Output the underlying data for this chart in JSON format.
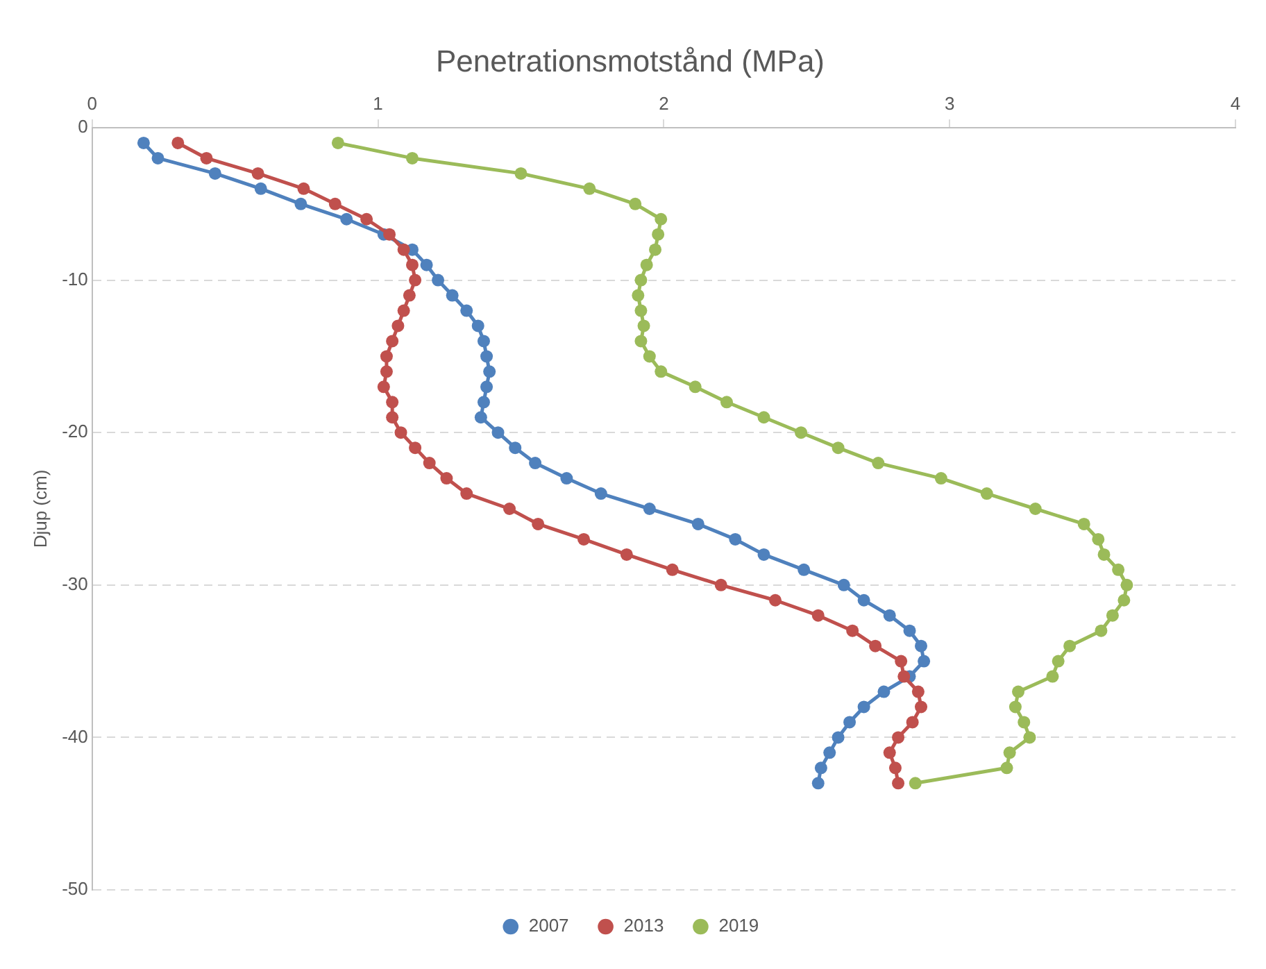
{
  "chart_data": {
    "type": "line",
    "title": "Penetrationsmotstånd (MPa)",
    "ylabel": "Djup (cm)",
    "xlim": [
      0,
      4
    ],
    "xticks": [
      0,
      1,
      2,
      3,
      4
    ],
    "ylim": [
      -50,
      0
    ],
    "yticks": [
      -50,
      -40,
      -30,
      -20,
      -10,
      0
    ],
    "grid": "y",
    "legend": "bottom",
    "marker": "circle",
    "line_style": "solid",
    "series": [
      {
        "name": "2007",
        "color": "#4f81bd",
        "x": [
          0.18,
          0.23,
          0.43,
          0.59,
          0.73,
          0.89,
          1.02,
          1.12,
          1.17,
          1.21,
          1.26,
          1.31,
          1.35,
          1.37,
          1.38,
          1.39,
          1.38,
          1.37,
          1.36,
          1.42,
          1.48,
          1.55,
          1.66,
          1.78,
          1.95,
          2.12,
          2.25,
          2.35,
          2.49,
          2.63,
          2.7,
          2.79,
          2.86,
          2.9,
          2.91,
          2.86,
          2.77,
          2.7,
          2.65,
          2.61,
          2.58,
          2.55,
          2.54
        ],
        "values": [
          -1,
          -2,
          -3,
          -4,
          -5,
          -6,
          -7,
          -8,
          -9,
          -10,
          -11,
          -12,
          -13,
          -14,
          -15,
          -16,
          -17,
          -18,
          -19,
          -20,
          -21,
          -22,
          -23,
          -24,
          -25,
          -26,
          -27,
          -28,
          -29,
          -30,
          -31,
          -32,
          -33,
          -34,
          -35,
          -36,
          -37,
          -38,
          -39,
          -40,
          -41,
          -42,
          -43
        ]
      },
      {
        "name": "2013",
        "color": "#c0504d",
        "x": [
          0.3,
          0.4,
          0.58,
          0.74,
          0.85,
          0.96,
          1.04,
          1.09,
          1.12,
          1.13,
          1.11,
          1.09,
          1.07,
          1.05,
          1.03,
          1.03,
          1.02,
          1.05,
          1.05,
          1.08,
          1.13,
          1.18,
          1.24,
          1.31,
          1.46,
          1.56,
          1.72,
          1.87,
          2.03,
          2.2,
          2.39,
          2.54,
          2.66,
          2.74,
          2.83,
          2.84,
          2.89,
          2.9,
          2.87,
          2.82,
          2.79,
          2.81,
          2.82
        ],
        "values": [
          -1,
          -2,
          -3,
          -4,
          -5,
          -6,
          -7,
          -8,
          -9,
          -10,
          -11,
          -12,
          -13,
          -14,
          -15,
          -16,
          -17,
          -18,
          -19,
          -20,
          -21,
          -22,
          -23,
          -24,
          -25,
          -26,
          -27,
          -28,
          -29,
          -30,
          -31,
          -32,
          -33,
          -34,
          -35,
          -36,
          -37,
          -38,
          -39,
          -40,
          -41,
          -42,
          -43
        ]
      },
      {
        "name": "2019",
        "color": "#9bbb59",
        "x": [
          0.86,
          1.12,
          1.5,
          1.74,
          1.9,
          1.99,
          1.98,
          1.97,
          1.94,
          1.92,
          1.91,
          1.92,
          1.93,
          1.92,
          1.95,
          1.99,
          2.11,
          2.22,
          2.35,
          2.48,
          2.61,
          2.75,
          2.97,
          3.13,
          3.3,
          3.47,
          3.52,
          3.54,
          3.59,
          3.62,
          3.61,
          3.57,
          3.53,
          3.42,
          3.38,
          3.36,
          3.24,
          3.23,
          3.26,
          3.28,
          3.21,
          3.2,
          2.88
        ],
        "values": [
          -1,
          -2,
          -3,
          -4,
          -5,
          -6,
          -7,
          -8,
          -9,
          -10,
          -11,
          -12,
          -13,
          -14,
          -15,
          -16,
          -17,
          -18,
          -19,
          -20,
          -21,
          -22,
          -23,
          -24,
          -25,
          -26,
          -27,
          -28,
          -29,
          -30,
          -31,
          -32,
          -33,
          -34,
          -35,
          -36,
          -37,
          -38,
          -39,
          -40,
          -41,
          -42,
          -43
        ]
      }
    ]
  }
}
